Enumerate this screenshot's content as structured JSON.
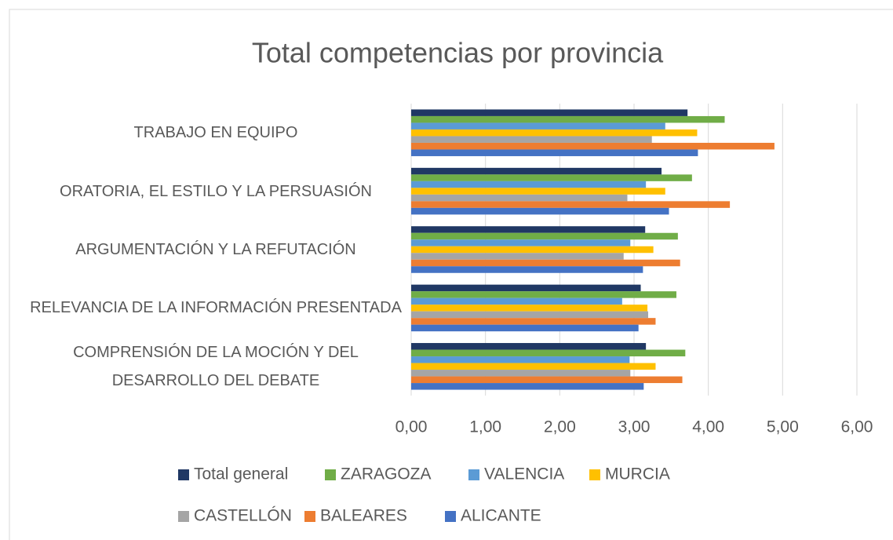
{
  "chart_data": {
    "type": "hbar",
    "title": "Total competencias por provincia",
    "categories": [
      "TRABAJO EN EQUIPO",
      "ORATORIA, EL ESTILO Y LA PERSUASIÓN",
      "ARGUMENTACIÓN Y LA REFUTACIÓN",
      "RELEVANCIA DE LA INFORMACIÓN PRESENTADA",
      "COMPRENSIÓN DE LA MOCIÓN Y DEL DESARROLLO DEL DEBATE"
    ],
    "series": [
      {
        "name": "Total general",
        "color": "#203864",
        "values": [
          3.72,
          3.37,
          3.15,
          3.09,
          3.16
        ]
      },
      {
        "name": "ZARAGOZA",
        "color": "#70ad47",
        "values": [
          4.22,
          3.78,
          3.59,
          3.57,
          3.69
        ]
      },
      {
        "name": "VALENCIA",
        "color": "#5b9bd5",
        "values": [
          3.42,
          3.16,
          2.95,
          2.84,
          2.94
        ]
      },
      {
        "name": "MURCIA",
        "color": "#ffc000",
        "values": [
          3.85,
          3.42,
          3.26,
          3.18,
          3.29
        ]
      },
      {
        "name": "CASTELLÓN",
        "color": "#a5a5a5",
        "values": [
          3.24,
          2.91,
          2.86,
          3.19,
          2.95
        ]
      },
      {
        "name": "BALEARES",
        "color": "#ed7d31",
        "values": [
          4.89,
          4.29,
          3.62,
          3.29,
          3.65
        ]
      },
      {
        "name": "ALICANTE",
        "color": "#4472c4",
        "values": [
          3.86,
          3.47,
          3.12,
          3.06,
          3.13
        ]
      }
    ],
    "xlim": [
      0,
      6
    ],
    "xticks": [
      {
        "value": 0,
        "label": "0,00"
      },
      {
        "value": 1,
        "label": "1,00"
      },
      {
        "value": 2,
        "label": "2,00"
      },
      {
        "value": 3,
        "label": "3,00"
      },
      {
        "value": 4,
        "label": "4,00"
      },
      {
        "value": 5,
        "label": "5,00"
      },
      {
        "value": 6,
        "label": "6,00"
      }
    ],
    "grid": true,
    "legend": "bottom"
  }
}
